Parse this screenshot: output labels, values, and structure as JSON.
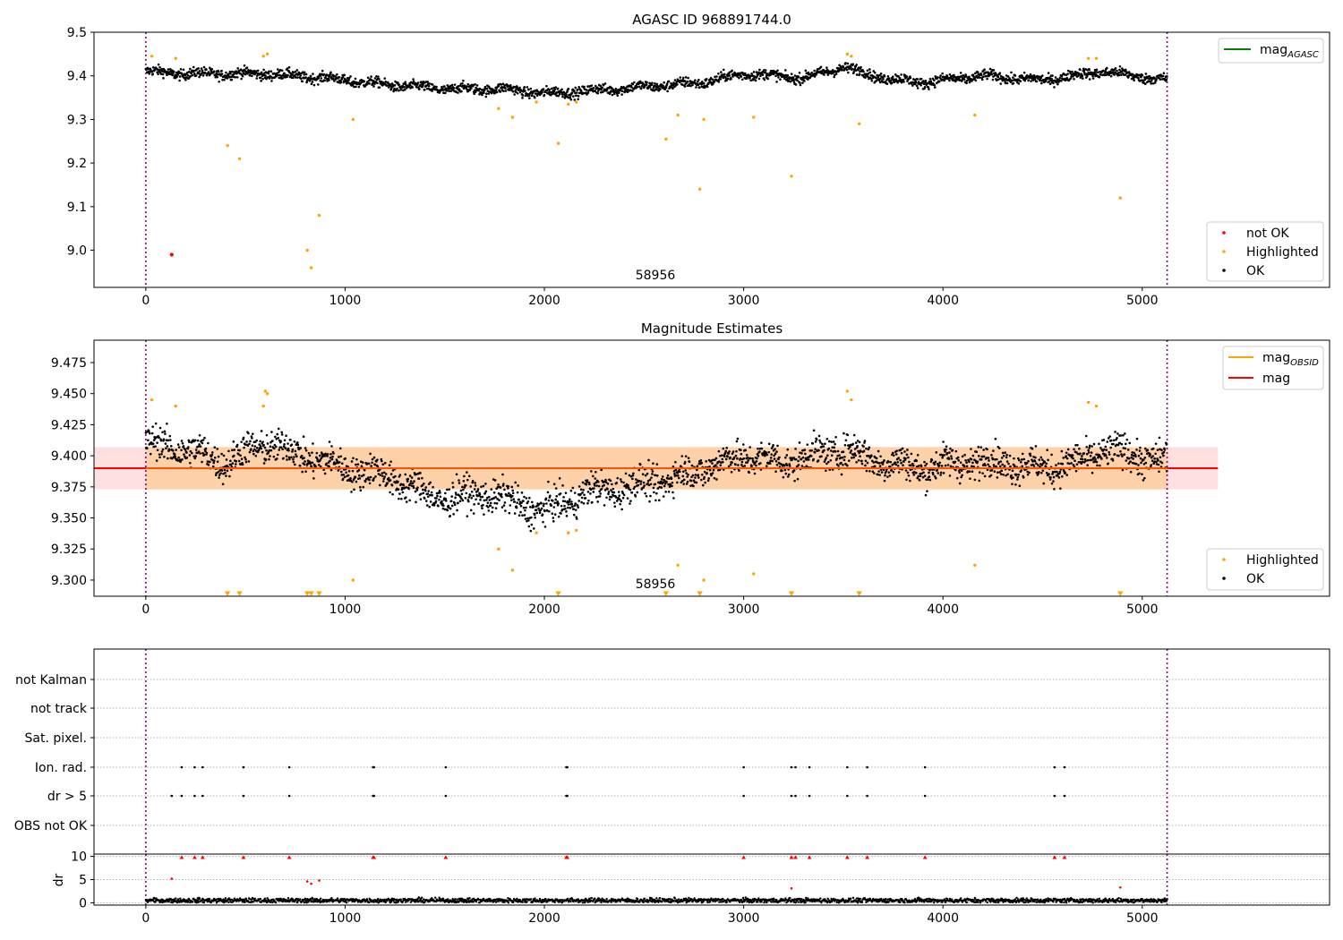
{
  "chart_data": [
    {
      "type": "scatter",
      "title": "AGASC ID 968891744.0",
      "xlim": [
        -260,
        5940
      ],
      "ylim": [
        8.915,
        9.5
      ],
      "xticks": [
        0,
        1000,
        2000,
        3000,
        4000,
        5000
      ],
      "yticks": [
        9.0,
        9.1,
        9.2,
        9.3,
        9.4,
        9.5
      ],
      "ytick_labels": [
        "9.0",
        "9.1",
        "9.2",
        "9.3",
        "9.4",
        "9.5"
      ],
      "annotation": "58956",
      "vlines": [
        0,
        5125
      ],
      "legend_top_right": [
        {
          "label": "mag",
          "sub": "AGASC",
          "color": "#008000"
        }
      ],
      "legend_bottom_right": [
        {
          "label": "not OK",
          "color": "#ff0000"
        },
        {
          "label": "Highlighted",
          "color": "#ffa500"
        },
        {
          "label": "OK",
          "color": "#000000"
        }
      ],
      "series": [
        {
          "name": "OK",
          "color": "#000000",
          "trend": {
            "x": [
              0,
              200,
              600,
              900,
              1200,
              1500,
              1800,
              2000,
              2200,
              2500,
              2800,
              3000,
              3300,
              3500,
              3700,
              3900,
              4200,
              4500,
              4800,
              5125
            ],
            "y": [
              9.41,
              9.405,
              9.405,
              9.395,
              9.38,
              9.37,
              9.37,
              9.36,
              9.365,
              9.375,
              9.385,
              9.405,
              9.395,
              9.42,
              9.395,
              9.385,
              9.4,
              9.39,
              9.41,
              9.39
            ]
          }
        },
        {
          "name": "Highlighted",
          "color": "#ffa500",
          "x": [
            30,
            150,
            410,
            470,
            590,
            610,
            810,
            830,
            870,
            1040,
            1770,
            1840,
            1960,
            2070,
            2120,
            2160,
            2610,
            2670,
            2780,
            2800,
            3050,
            3240,
            3520,
            3540,
            3580,
            4160,
            4730,
            4770,
            4890
          ],
          "y": [
            9.445,
            9.44,
            9.24,
            9.21,
            9.445,
            9.45,
            9.0,
            8.96,
            9.08,
            9.3,
            9.325,
            9.305,
            9.34,
            9.245,
            9.335,
            9.34,
            9.255,
            9.31,
            9.14,
            9.3,
            9.305,
            9.17,
            9.45,
            9.445,
            9.29,
            9.31,
            9.44,
            9.44,
            9.12
          ]
        },
        {
          "name": "not OK",
          "color": "#ff0000",
          "x": [
            130
          ],
          "y": [
            8.99
          ]
        }
      ]
    },
    {
      "type": "scatter",
      "title": "Magnitude Estimates",
      "xlim": [
        -260,
        5940
      ],
      "ylim": [
        9.287,
        9.493
      ],
      "xticks": [
        0,
        1000,
        2000,
        3000,
        4000,
        5000
      ],
      "yticks": [
        9.3,
        9.325,
        9.35,
        9.375,
        9.4,
        9.425,
        9.45,
        9.475
      ],
      "ytick_labels": [
        "9.300",
        "9.325",
        "9.350",
        "9.375",
        "9.400",
        "9.425",
        "9.450",
        "9.475"
      ],
      "annotation": "58956",
      "vlines": [
        0,
        5125
      ],
      "mag_line": 9.39,
      "band": [
        9.373,
        9.407
      ],
      "band_xlim": [
        -260,
        5380
      ],
      "obsid_span": [
        0,
        5125
      ],
      "legend_top_right": [
        {
          "label": "mag",
          "sub": "OBSID",
          "color": "#ffa500"
        },
        {
          "label": "mag",
          "sub": "",
          "color": "#ff0000"
        }
      ],
      "legend_bottom_right": [
        {
          "label": "Highlighted",
          "color": "#ffa500"
        },
        {
          "label": "OK",
          "color": "#000000"
        }
      ],
      "series": [
        {
          "name": "OK",
          "color": "#000000",
          "trend": {
            "x": [
              0,
              200,
              400,
              600,
              800,
              1000,
              1200,
              1400,
              1500,
              1700,
              1900,
              2000,
              2200,
              2400,
              2600,
              2800,
              3000,
              3200,
              3500,
              3700,
              3900,
              4100,
              4300,
              4500,
              4700,
              4800,
              5125
            ],
            "y": [
              9.41,
              9.405,
              9.395,
              9.41,
              9.4,
              9.39,
              9.385,
              9.37,
              9.365,
              9.37,
              9.36,
              9.355,
              9.37,
              9.375,
              9.38,
              9.39,
              9.4,
              9.395,
              9.405,
              9.395,
              9.39,
              9.395,
              9.395,
              9.39,
              9.395,
              9.405,
              9.395
            ]
          }
        },
        {
          "name": "Highlighted",
          "color": "#ffa500",
          "x": [
            30,
            150,
            590,
            600,
            610,
            1040,
            1770,
            1840,
            1960,
            2120,
            2160,
            2670,
            2800,
            3050,
            3520,
            3540,
            4160,
            4730,
            4770
          ],
          "y": [
            9.445,
            9.44,
            9.44,
            9.452,
            9.45,
            9.3,
            9.325,
            9.308,
            9.338,
            9.338,
            9.34,
            9.312,
            9.3,
            9.305,
            9.452,
            9.445,
            9.312,
            9.443,
            9.44
          ]
        },
        {
          "name": "Highlighted (below range)",
          "color": "#ffa500",
          "marker": "triangle-down",
          "x": [
            410,
            470,
            810,
            830,
            870,
            2070,
            2610,
            2780,
            3240,
            3580,
            4890
          ],
          "y": [
            9.29,
            9.29,
            9.29,
            9.29,
            9.29,
            9.29,
            9.29,
            9.29,
            9.29,
            9.29,
            9.29
          ]
        }
      ]
    },
    {
      "type": "scatter",
      "title": "",
      "xlim": [
        -260,
        5940
      ],
      "xticks": [
        0,
        1000,
        2000,
        3000,
        4000,
        5000
      ],
      "vlines": [
        0,
        5125
      ],
      "flag_labels": [
        "not Kalman",
        "not track",
        "Sat. pixel.",
        "Ion. rad.",
        "dr > 5",
        "OBS not OK"
      ],
      "flags": {
        "Ion. rad.": [
          180,
          245,
          285,
          490,
          720,
          1140,
          1145,
          1505,
          2110,
          2115,
          3000,
          3240,
          3260,
          3330,
          3520,
          3620,
          3910,
          4560,
          4610
        ],
        "dr > 5": [
          130,
          180,
          245,
          285,
          490,
          720,
          1140,
          1145,
          1505,
          2110,
          2115,
          3000,
          3240,
          3260,
          3330,
          3520,
          3620,
          3910,
          4560,
          4610
        ]
      }
    },
    {
      "type": "scatter",
      "title": "",
      "ylabel": "dr",
      "xlim": [
        -260,
        5940
      ],
      "ylim": [
        -0.5,
        10.5
      ],
      "xticks": [
        0,
        1000,
        2000,
        3000,
        4000,
        5000
      ],
      "xtick_labels": [
        "0",
        "1000",
        "2000",
        "3000",
        "4000",
        "5000"
      ],
      "yticks": [
        0,
        5,
        10
      ],
      "ytick_labels": [
        "0",
        "5",
        "10"
      ],
      "vlines": [
        0,
        5125
      ],
      "series": [
        {
          "name": "OK",
          "color": "#000000",
          "level": 0.5
        },
        {
          "name": "not OK (clipped)",
          "color": "#ff0000",
          "marker": "triangle-up",
          "x": [
            180,
            245,
            285,
            490,
            720,
            1140,
            1145,
            1505,
            2110,
            2115,
            3000,
            3240,
            3260,
            3330,
            3520,
            3620,
            3910,
            4560,
            4610
          ],
          "y": [
            10,
            10,
            10,
            10,
            10,
            10,
            10,
            10,
            10,
            10,
            10,
            10,
            10,
            10,
            10,
            10,
            10,
            10,
            10
          ]
        },
        {
          "name": "not OK",
          "color": "#ff0000",
          "x": [
            130,
            810,
            830,
            870,
            3240,
            4890
          ],
          "y": [
            5.2,
            4.6,
            4.1,
            4.8,
            3.1,
            3.3
          ]
        }
      ]
    }
  ]
}
